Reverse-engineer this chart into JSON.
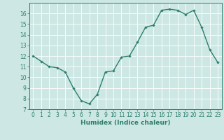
{
  "x": [
    0,
    1,
    2,
    3,
    4,
    5,
    6,
    7,
    8,
    9,
    10,
    11,
    12,
    13,
    14,
    15,
    16,
    17,
    18,
    19,
    20,
    21,
    22,
    23
  ],
  "y": [
    12.0,
    11.5,
    11.0,
    10.9,
    10.5,
    9.0,
    7.8,
    7.5,
    8.4,
    10.5,
    10.6,
    11.9,
    12.0,
    13.3,
    14.7,
    14.9,
    16.3,
    16.4,
    16.3,
    15.9,
    16.3,
    14.7,
    12.6,
    11.4
  ],
  "xlim": [
    -0.5,
    23.5
  ],
  "ylim": [
    7,
    17
  ],
  "yticks": [
    7,
    8,
    9,
    10,
    11,
    12,
    13,
    14,
    15,
    16
  ],
  "xticks": [
    0,
    1,
    2,
    3,
    4,
    5,
    6,
    7,
    8,
    9,
    10,
    11,
    12,
    13,
    14,
    15,
    16,
    17,
    18,
    19,
    20,
    21,
    22,
    23
  ],
  "xlabel": "Humidex (Indice chaleur)",
  "line_color": "#2e7d6e",
  "marker_color": "#2e7d6e",
  "bg_color": "#cde8e4",
  "grid_color": "#ffffff",
  "axis_color": "#2e7d6e",
  "tick_fontsize": 5.5,
  "xlabel_fontsize": 6.5,
  "marker": "D",
  "markersize": 1.8,
  "linewidth": 1.0
}
